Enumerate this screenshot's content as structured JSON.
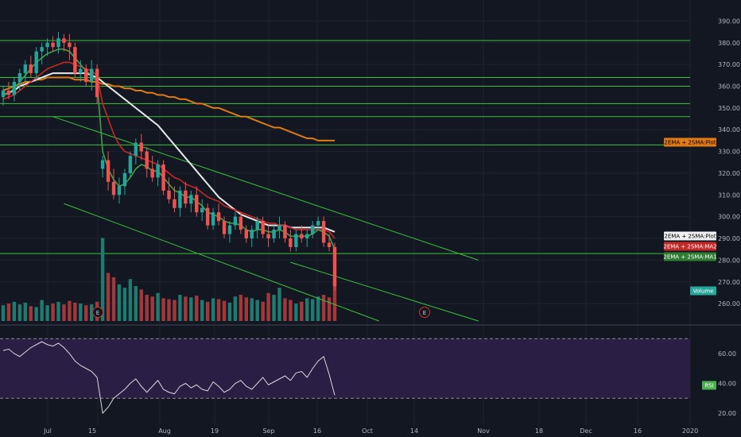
{
  "colors": {
    "background": "#131722",
    "grid": "#1f2330",
    "axis_text": "#b2b5be",
    "candle_up": "#26a69a",
    "candle_down": "#ef5350",
    "vol_up": "#1f7a6f",
    "vol_down": "#a3383a",
    "ema_fast": "#43a047",
    "ema_slow": "#c62828",
    "sma_50": "#e8e8e8",
    "sma_200": "#e07a15",
    "levels": "#3ac43a",
    "rsi_fill": "#2a1e45",
    "rsi_line": "#d9d9d9",
    "rsi_label_bg": "#4caf50"
  },
  "labels": {
    "plot_orange": "2EMA + 2SMA:Plot",
    "plot_white": "2EMA + 2SMA:Plot",
    "ma2": "2EMA + 2SMA:MA2",
    "ma1": "2EMA + 2SMA:MA1",
    "volume": "Volume",
    "rsi": "RSI",
    "earnings_marker": "E"
  },
  "chart_data": {
    "type": "candlestick",
    "x_ticks": [
      "Jul",
      "15",
      "Aug",
      "19",
      "Sep",
      "16",
      "Oct",
      "14",
      "Nov",
      "18",
      "Dec",
      "16",
      "2020"
    ],
    "price_axis": {
      "ticks": [
        "390.00",
        "380.00",
        "370.00",
        "360.00",
        "350.00",
        "340.00",
        "330.00",
        "320.00",
        "310.00",
        "300.00",
        "290.00",
        "280.00",
        "270.00",
        "260.00"
      ],
      "ylim": [
        252,
        396
      ]
    },
    "rsi_axis": {
      "ticks": [
        "60.00",
        "40.00",
        "20.00"
      ],
      "ylim": [
        12,
        76
      ],
      "bands": [
        70,
        30
      ]
    },
    "horizontal_levels": [
      381,
      364,
      360,
      352,
      346,
      333,
      283
    ],
    "trend_lines": [
      {
        "from": [
          9,
          346
        ],
        "to": [
          86,
          280
        ]
      },
      {
        "from": [
          11,
          306
        ],
        "to": [
          68,
          252
        ]
      },
      {
        "from": [
          52,
          279
        ],
        "to": [
          86,
          252
        ]
      }
    ],
    "candles": [
      [
        355,
        360,
        351,
        358
      ],
      [
        358,
        362,
        354,
        356
      ],
      [
        356,
        364,
        353,
        362
      ],
      [
        362,
        368,
        358,
        366
      ],
      [
        366,
        372,
        362,
        370
      ],
      [
        370,
        374,
        364,
        366
      ],
      [
        366,
        378,
        362,
        376
      ],
      [
        376,
        380,
        370,
        378
      ],
      [
        378,
        382,
        374,
        380
      ],
      [
        380,
        383,
        376,
        378
      ],
      [
        378,
        385,
        375,
        382
      ],
      [
        382,
        384,
        376,
        380
      ],
      [
        380,
        384,
        372,
        378
      ],
      [
        378,
        380,
        364,
        366
      ],
      [
        366,
        372,
        362,
        368
      ],
      [
        368,
        370,
        360,
        362
      ],
      [
        362,
        372,
        358,
        368
      ],
      [
        368,
        370,
        352,
        355
      ],
      [
        322,
        328,
        318,
        326
      ],
      [
        326,
        330,
        312,
        316
      ],
      [
        316,
        322,
        308,
        310
      ],
      [
        310,
        318,
        306,
        314
      ],
      [
        314,
        322,
        310,
        320
      ],
      [
        320,
        330,
        318,
        328
      ],
      [
        328,
        336,
        324,
        334
      ],
      [
        334,
        338,
        326,
        330
      ],
      [
        330,
        332,
        318,
        322
      ],
      [
        322,
        328,
        316,
        318
      ],
      [
        318,
        326,
        314,
        324
      ],
      [
        324,
        326,
        310,
        312
      ],
      [
        312,
        318,
        306,
        308
      ],
      [
        308,
        314,
        302,
        304
      ],
      [
        304,
        314,
        300,
        312
      ],
      [
        312,
        316,
        304,
        306
      ],
      [
        306,
        312,
        302,
        310
      ],
      [
        310,
        314,
        300,
        302
      ],
      [
        302,
        308,
        298,
        304
      ],
      [
        304,
        306,
        294,
        296
      ],
      [
        296,
        304,
        294,
        302
      ],
      [
        302,
        306,
        296,
        298
      ],
      [
        298,
        300,
        290,
        292
      ],
      [
        292,
        298,
        288,
        296
      ],
      [
        296,
        302,
        294,
        300
      ],
      [
        300,
        302,
        292,
        294
      ],
      [
        294,
        296,
        288,
        290
      ],
      [
        290,
        296,
        286,
        294
      ],
      [
        294,
        300,
        290,
        298
      ],
      [
        298,
        300,
        290,
        292
      ],
      [
        292,
        296,
        286,
        290
      ],
      [
        290,
        296,
        288,
        294
      ],
      [
        294,
        300,
        290,
        296
      ],
      [
        296,
        298,
        288,
        290
      ],
      [
        290,
        294,
        284,
        286
      ],
      [
        286,
        294,
        284,
        292
      ],
      [
        292,
        296,
        288,
        290
      ],
      [
        290,
        294,
        286,
        292
      ],
      [
        292,
        298,
        290,
        296
      ],
      [
        296,
        300,
        294,
        298
      ],
      [
        298,
        300,
        286,
        288
      ],
      [
        288,
        292,
        284,
        286
      ],
      [
        286,
        288,
        266,
        268
      ]
    ],
    "volume": {
      "values": [
        18,
        20,
        22,
        19,
        21,
        17,
        16,
        24,
        18,
        20,
        22,
        19,
        23,
        21,
        20,
        18,
        19,
        22,
        95,
        55,
        50,
        42,
        38,
        48,
        40,
        36,
        30,
        28,
        32,
        26,
        25,
        24,
        30,
        28,
        27,
        29,
        24,
        22,
        26,
        25,
        23,
        21,
        28,
        30,
        27,
        26,
        24,
        22,
        32,
        30,
        38,
        26,
        24,
        20,
        22,
        26,
        25,
        28,
        30,
        27,
        45
      ],
      "ylim": [
        0,
        100
      ]
    },
    "rsi": [
      62,
      63,
      60,
      58,
      61,
      64,
      66,
      68,
      66,
      65,
      67,
      64,
      60,
      55,
      52,
      50,
      48,
      44,
      20,
      24,
      30,
      33,
      36,
      40,
      43,
      38,
      34,
      38,
      42,
      36,
      34,
      33,
      38,
      40,
      37,
      39,
      36,
      35,
      41,
      38,
      34,
      36,
      40,
      42,
      38,
      36,
      40,
      44,
      39,
      41,
      43,
      45,
      42,
      47,
      48,
      44,
      50,
      55,
      58,
      46,
      32
    ],
    "ema_fast": [
      356,
      357,
      359,
      362,
      365,
      368,
      371,
      373,
      375,
      376,
      377,
      377,
      376,
      373,
      370,
      367,
      365,
      362,
      330,
      322,
      317,
      314,
      315,
      318,
      322,
      324,
      323,
      321,
      321,
      318,
      315,
      312,
      311,
      309,
      309,
      307,
      305,
      302,
      301,
      300,
      298,
      297,
      297,
      296,
      294,
      293,
      294,
      294,
      293,
      293,
      294,
      293,
      291,
      291,
      291,
      291,
      292,
      294,
      293,
      291,
      285
    ],
    "ema_slow": [
      354,
      355,
      356,
      358,
      360,
      362,
      364,
      366,
      368,
      369,
      370,
      371,
      371,
      370,
      369,
      368,
      367,
      365,
      352,
      345,
      338,
      333,
      330,
      329,
      328,
      327,
      326,
      325,
      324,
      322,
      320,
      318,
      317,
      315,
      314,
      313,
      311,
      309,
      308,
      307,
      305,
      304,
      303,
      302,
      301,
      300,
      299,
      298,
      297,
      297,
      296,
      296,
      295,
      294,
      294,
      294,
      294,
      294,
      294,
      293,
      290
    ],
    "sma_50": [
      356,
      357,
      358,
      360,
      361,
      362,
      363,
      364,
      365,
      366,
      366,
      366,
      366,
      366,
      366,
      366,
      365,
      364,
      362,
      360,
      358,
      356,
      354,
      352,
      350,
      348,
      346,
      344,
      342,
      339,
      336,
      333,
      330,
      327,
      324,
      321,
      318,
      315,
      312,
      309,
      307,
      305,
      303,
      301,
      300,
      299,
      298,
      297,
      296,
      296,
      296,
      296,
      295,
      295,
      295,
      295,
      295,
      295,
      295,
      294,
      293
    ],
    "sma_200": [
      358,
      359,
      360,
      361,
      362,
      362,
      363,
      363,
      364,
      364,
      364,
      364,
      364,
      363,
      363,
      363,
      362,
      362,
      361,
      361,
      360,
      360,
      359,
      359,
      358,
      358,
      357,
      357,
      356,
      356,
      355,
      355,
      354,
      354,
      353,
      352,
      352,
      351,
      350,
      350,
      349,
      348,
      347,
      346,
      346,
      345,
      344,
      343,
      342,
      341,
      341,
      340,
      339,
      338,
      337,
      336,
      336,
      335,
      335,
      335,
      335
    ],
    "earnings_markers_x": [
      14,
      60
    ]
  }
}
